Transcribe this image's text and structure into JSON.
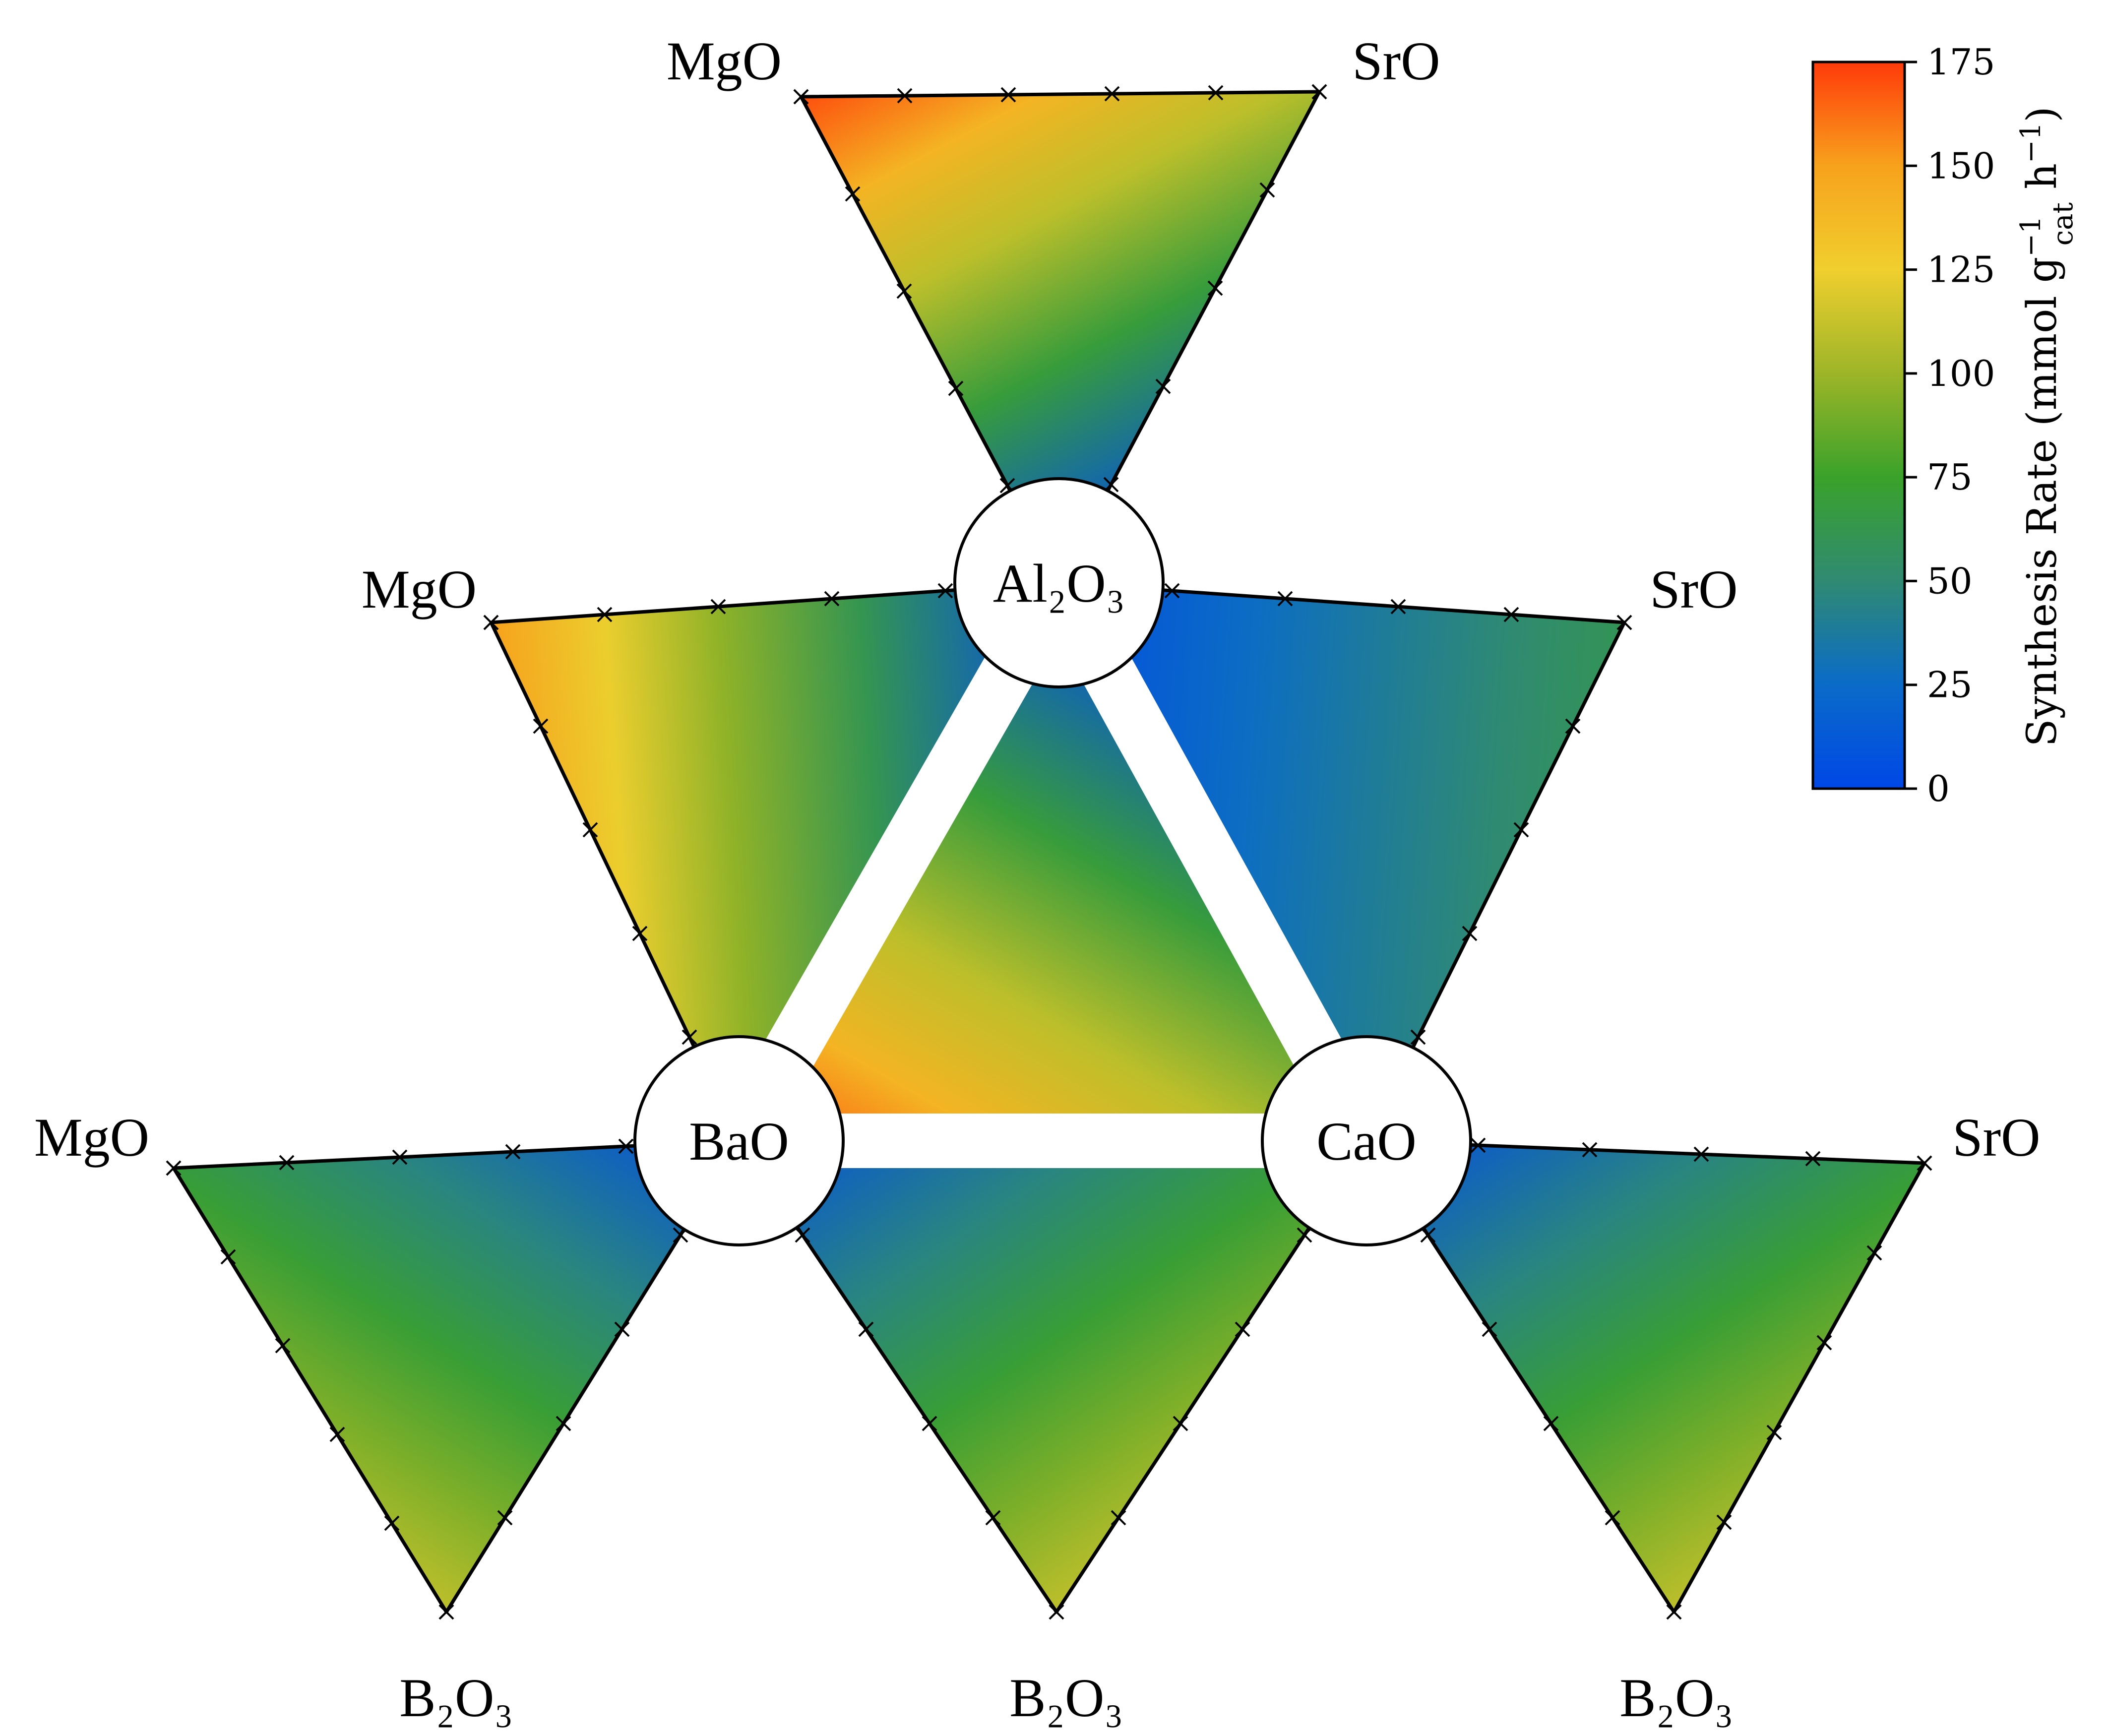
{
  "chart_data": {
    "type": "heatmap",
    "title": "",
    "subtitle": "",
    "description_layout": "ternary composition maps arranged around a central ternary (Al2O3-BaO-CaO), each outer triangle pairing one hub oxide with two outer oxides",
    "hub_labels": {
      "al": "Al₂O₃",
      "ba": "BaO",
      "ca": "CaO"
    },
    "outer_labels": {
      "mgo": "MgO",
      "sro": "SrO",
      "b2o3": "B₂O₃"
    },
    "panels": [
      {
        "name": "MgO-SrO-Al2O3",
        "vertices": [
          "MgO",
          "SrO",
          "Al₂O₃"
        ],
        "peak_rate": 170,
        "peak_region": "MgO-rich edge",
        "low_region": "Al₂O₃-rich corner"
      },
      {
        "name": "MgO-Al2O3-BaO",
        "vertices": [
          "MgO",
          "Al₂O₃",
          "BaO"
        ],
        "peak_rate": 150,
        "peak_region": "diagonal band",
        "low_region": "Al₂O₃-rich region"
      },
      {
        "name": "Al2O3-BaO-CaO",
        "vertices": [
          "Al₂O₃",
          "BaO",
          "CaO"
        ],
        "peak_rate": 170,
        "peak_region": "BaO side, mid height",
        "low_region": "Al₂O₃-rich corner"
      },
      {
        "name": "Al2O3-SrO-CaO",
        "vertices": [
          "Al₂O₃",
          "SrO",
          "CaO"
        ],
        "peak_rate": 60,
        "peak_region": "SrO-CaO edge",
        "low_region": "Al₂O₃ side"
      },
      {
        "name": "MgO-BaO-B2O3",
        "vertices": [
          "MgO",
          "BaO",
          "B₂O₃"
        ],
        "peak_rate": 110,
        "peak_region": "upper band",
        "low_region": "BaO edge"
      },
      {
        "name": "BaO-CaO-B2O3",
        "vertices": [
          "BaO",
          "CaO",
          "B₂O₃"
        ],
        "peak_rate": 110,
        "peak_region": "upper band",
        "low_region": "BaO-CaO edge"
      },
      {
        "name": "CaO-SrO-B2O3",
        "vertices": [
          "CaO",
          "SrO",
          "B₂O₃"
        ],
        "peak_rate": 110,
        "peak_region": "upper band",
        "low_region": "CaO-SrO edge"
      }
    ],
    "colorbar": {
      "label_main": "Synthesis Rate (mmol g",
      "label_sup1": "−1",
      "label_sub": "cat",
      "label_mid": " h",
      "label_sup2": "−1",
      "label_end": ")",
      "range": [
        0,
        175
      ],
      "ticks": [
        "0",
        "25",
        "50",
        "75",
        "100",
        "125",
        "150",
        "175"
      ],
      "tick_values": [
        0,
        25,
        50,
        75,
        100,
        125,
        150,
        175
      ],
      "colormap": [
        "#0047e6",
        "#0a6bc8",
        "#2f8a72",
        "#3aa22a",
        "#9db528",
        "#f0cf2e",
        "#f7a21c",
        "#ff3a0a"
      ]
    }
  }
}
